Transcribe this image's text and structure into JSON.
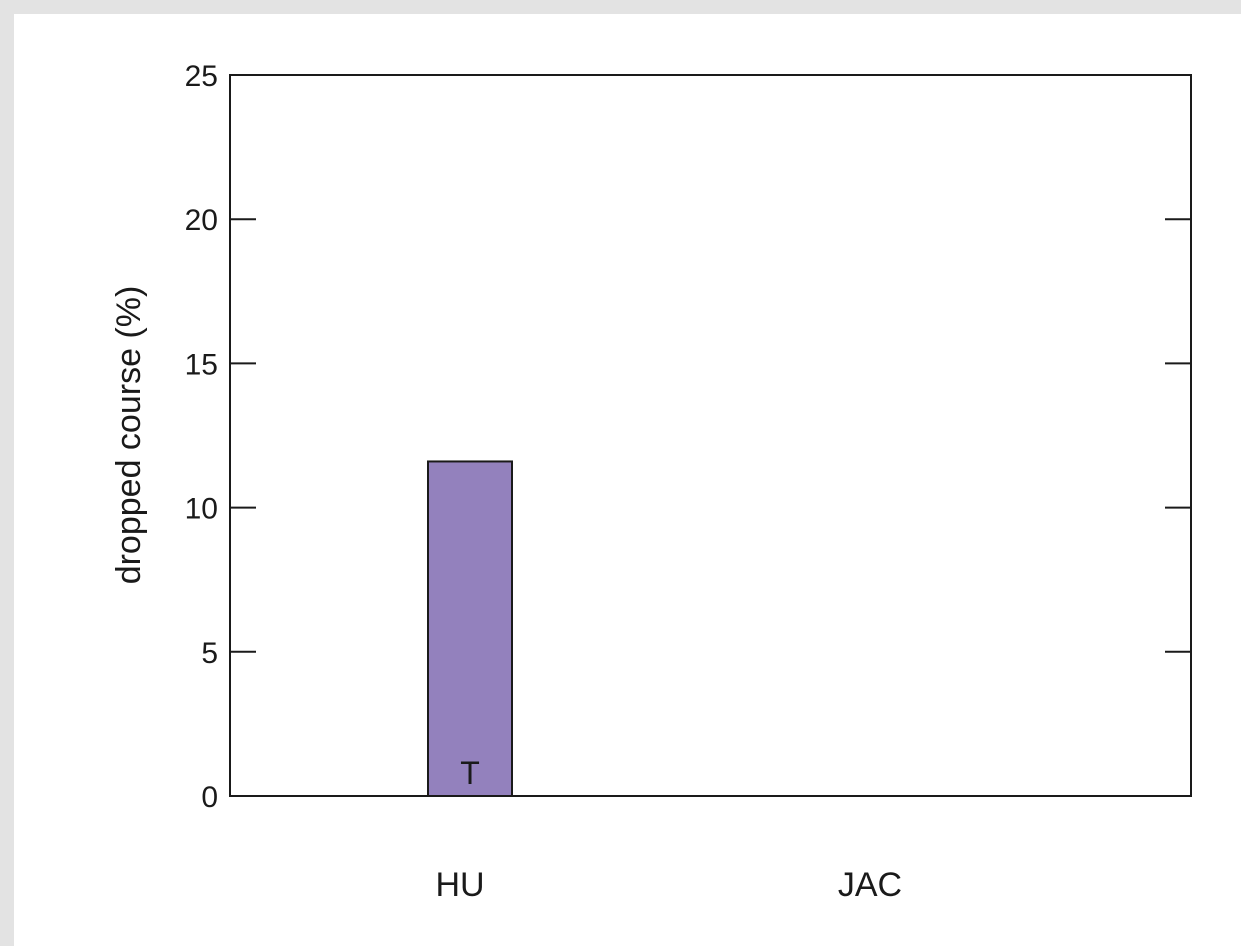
{
  "chart_data": {
    "type": "bar",
    "categories": [
      "HU",
      "JAC"
    ],
    "values": [
      11.6,
      0
    ],
    "bar_labels": [
      "T",
      ""
    ],
    "title": "",
    "xlabel": "",
    "ylabel": "dropped course (%)",
    "ylim": [
      0,
      25
    ],
    "yticks": [
      0,
      5,
      10,
      15,
      20,
      25
    ],
    "grid": false,
    "colors": {
      "bar_fill": "#9381bd",
      "bar_stroke": "#1a1a1a",
      "axis": "#1a1a1a"
    }
  }
}
